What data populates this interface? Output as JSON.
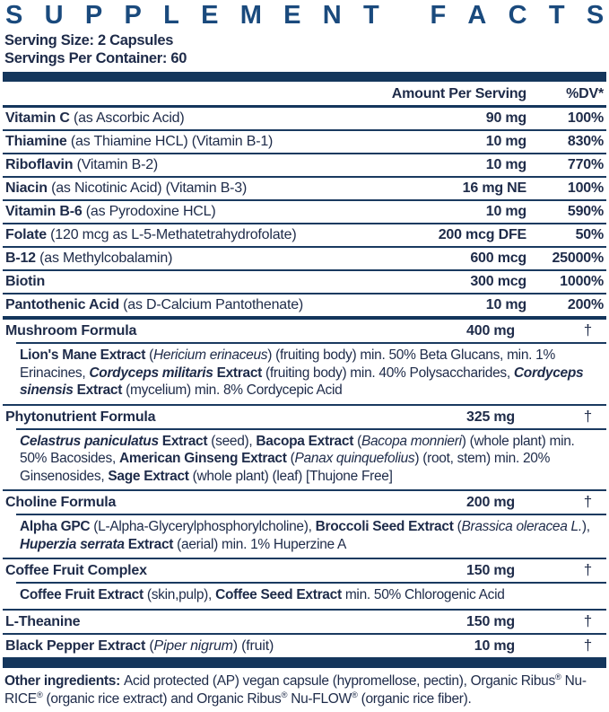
{
  "colors": {
    "title_blue": "#1a4a7d",
    "bar_navy": "#14365c",
    "text_navy": "#1e2b49",
    "divider_navy": "#1a3a60"
  },
  "header": {
    "title": "SUPPLEMENT FACTS",
    "serving_size": "Serving Size: 2 Capsules",
    "servings_per_container": "Servings Per Container: 60",
    "col_amount": "Amount Per Serving",
    "col_dv": "%DV*"
  },
  "table": {
    "rows": [
      {
        "type": "nutrient",
        "name": [
          {
            "t": "Vitamin C",
            "b": 1
          },
          {
            "t": " (as Ascorbic Acid)"
          }
        ],
        "amount": "90 mg",
        "dv": "100%"
      },
      {
        "type": "nutrient",
        "name": [
          {
            "t": "Thiamine",
            "b": 1
          },
          {
            "t": " (as Thiamine HCL) (Vitamin B-1)"
          }
        ],
        "amount": "10 mg",
        "dv": "830%"
      },
      {
        "type": "nutrient",
        "name": [
          {
            "t": "Riboflavin",
            "b": 1
          },
          {
            "t": " (Vitamin B-2)"
          }
        ],
        "amount": "10 mg",
        "dv": "770%"
      },
      {
        "type": "nutrient",
        "name": [
          {
            "t": "Niacin",
            "b": 1
          },
          {
            "t": " (as Nicotinic Acid) (Vitamin B-3)"
          }
        ],
        "amount": "16 mg NE",
        "dv": "100%"
      },
      {
        "type": "nutrient",
        "name": [
          {
            "t": "Vitamin B-6",
            "b": 1
          },
          {
            "t": " (as Pyrodoxine HCL)"
          }
        ],
        "amount": "10 mg",
        "dv": "590%"
      },
      {
        "type": "nutrient",
        "name": [
          {
            "t": "Folate",
            "b": 1
          },
          {
            "t": " (120 mcg as L-5-Methatetrahydrofolate)"
          }
        ],
        "amount": "200 mcg DFE",
        "dv": "50%"
      },
      {
        "type": "nutrient",
        "name": [
          {
            "t": "B-12",
            "b": 1
          },
          {
            "t": " (as Methylcobalamin)"
          }
        ],
        "amount": "600 mcg",
        "dv": "25000%"
      },
      {
        "type": "nutrient",
        "name": [
          {
            "t": "Biotin",
            "b": 1
          }
        ],
        "amount": "300 mcg",
        "dv": "1000%"
      },
      {
        "type": "nutrient",
        "name": [
          {
            "t": "Pantothenic Acid",
            "b": 1
          },
          {
            "t": " (as D-Calcium Pantothenate)"
          }
        ],
        "amount": "10 mg",
        "dv": "200%"
      },
      {
        "type": "formula",
        "name": [
          {
            "t": "Mushroom Formula",
            "b": 1
          }
        ],
        "amount": "400 mg",
        "dv": "†"
      },
      {
        "type": "sub",
        "name": [
          {
            "t": "Lion's Mane Extract",
            "b": 1
          },
          {
            "t": " ("
          },
          {
            "t": "Hericium erinaceus",
            "i": 1
          },
          {
            "t": ") (fruiting body) min. 50% Beta Glucans, min. 1% Erinacines, "
          },
          {
            "t": "Cordyceps militaris",
            "b": 1,
            "i": 1
          },
          {
            "t": " Extract",
            "b": 1
          },
          {
            "t": " (fruiting body) min. 40% Polysaccharides, "
          },
          {
            "t": "Cordyceps sinensis",
            "b": 1,
            "i": 1
          },
          {
            "t": " Extract",
            "b": 1
          },
          {
            "t": " (mycelium) min. 8% Cordycepic Acid"
          }
        ]
      },
      {
        "type": "formula",
        "name": [
          {
            "t": "Phytonutrient Formula",
            "b": 1
          }
        ],
        "amount": "325 mg",
        "dv": "†"
      },
      {
        "type": "sub",
        "name": [
          {
            "t": "Celastrus paniculatus",
            "b": 1,
            "i": 1
          },
          {
            "t": " Extract",
            "b": 1
          },
          {
            "t": " (seed), "
          },
          {
            "t": "Bacopa Extract",
            "b": 1
          },
          {
            "t": " ("
          },
          {
            "t": "Bacopa monnieri",
            "i": 1
          },
          {
            "t": ") (whole plant) min. 50% Bacosides, "
          },
          {
            "t": "American Ginseng Extract",
            "b": 1
          },
          {
            "t": " ("
          },
          {
            "t": "Panax quinquefolius",
            "i": 1
          },
          {
            "t": ") (root, stem) min. 20% Ginsenosides, "
          },
          {
            "t": "Sage Extract",
            "b": 1
          },
          {
            "t": " (whole plant) (leaf) [Thujone Free]"
          }
        ]
      },
      {
        "type": "formula",
        "name": [
          {
            "t": "Choline Formula",
            "b": 1
          }
        ],
        "amount": "200 mg",
        "dv": "†"
      },
      {
        "type": "sub",
        "name": [
          {
            "t": "Alpha GPC",
            "b": 1
          },
          {
            "t": " (L-Alpha-Glycerylphosphorylcholine), "
          },
          {
            "t": "Broccoli Seed Extract",
            "b": 1
          },
          {
            "t": " ("
          },
          {
            "t": "Brassica oleracea L.",
            "i": 1
          },
          {
            "t": "), "
          },
          {
            "t": "Huperzia serrata",
            "b": 1,
            "i": 1
          },
          {
            "t": " Extract",
            "b": 1
          },
          {
            "t": " (aerial) min. 1% Huperzine A"
          }
        ]
      },
      {
        "type": "formula",
        "name": [
          {
            "t": "Coffee Fruit Complex",
            "b": 1
          }
        ],
        "amount": "150 mg",
        "dv": "†"
      },
      {
        "type": "sub",
        "name": [
          {
            "t": "Coffee Fruit Extract",
            "b": 1
          },
          {
            "t": " (skin,pulp), "
          },
          {
            "t": "Coffee Seed Extract",
            "b": 1
          },
          {
            "t": " min. 50% Chlorogenic Acid"
          }
        ]
      },
      {
        "type": "formula",
        "name": [
          {
            "t": "L-Theanine",
            "b": 1
          }
        ],
        "amount": "150 mg",
        "dv": "†"
      },
      {
        "type": "formula",
        "name": [
          {
            "t": "Black Pepper Extract",
            "b": 1
          },
          {
            "t": " ("
          },
          {
            "t": "Piper nigrum",
            "i": 1
          },
          {
            "t": ") (fruit)"
          }
        ],
        "amount": "10 mg",
        "dv": "†"
      }
    ]
  },
  "footer": {
    "segments": [
      {
        "t": "Other ingredients: ",
        "b": 1
      },
      {
        "t": "Acid protected (AP) vegan capsule (hypromellose, pectin), Organic Ribus"
      },
      {
        "t": "®",
        "s": 1
      },
      {
        "t": " Nu-RICE"
      },
      {
        "t": "®",
        "s": 1
      },
      {
        "t": " (organic rice extract) and Organic Ribus"
      },
      {
        "t": "®",
        "s": 1
      },
      {
        "t": " Nu-FLOW"
      },
      {
        "t": "®",
        "s": 1
      },
      {
        "t": " (organic rice fiber)."
      }
    ]
  }
}
